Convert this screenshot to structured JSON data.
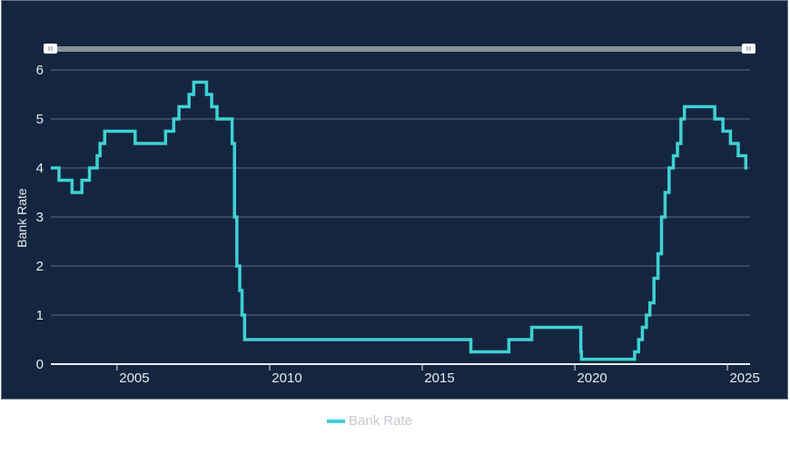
{
  "chart_data": {
    "type": "line",
    "step": true,
    "ylabel": "Bank Rate",
    "xlabel": "",
    "ylim": [
      0,
      6
    ],
    "yticks": [
      "0",
      "1",
      "2",
      "3",
      "4",
      "5",
      "6"
    ],
    "xlim": [
      2002.83,
      2025.65
    ],
    "xticks": [
      "2005",
      "2010",
      "2015",
      "2020",
      "2025"
    ],
    "grid": true,
    "legend_position": "bottom",
    "color": "#3fd0d4",
    "series": [
      {
        "name": "Bank Rate",
        "points": [
          [
            "2002-10-31",
            4.0
          ],
          [
            "2003-02-06",
            3.75
          ],
          [
            "2003-07-10",
            3.5
          ],
          [
            "2003-11-06",
            3.75
          ],
          [
            "2004-02-05",
            4.0
          ],
          [
            "2004-05-06",
            4.25
          ],
          [
            "2004-06-10",
            4.5
          ],
          [
            "2004-08-05",
            4.75
          ],
          [
            "2005-08-04",
            4.5
          ],
          [
            "2006-08-03",
            4.75
          ],
          [
            "2006-11-09",
            5.0
          ],
          [
            "2007-01-11",
            5.25
          ],
          [
            "2007-05-10",
            5.5
          ],
          [
            "2007-07-05",
            5.75
          ],
          [
            "2007-12-06",
            5.5
          ],
          [
            "2008-02-07",
            5.25
          ],
          [
            "2008-04-10",
            5.0
          ],
          [
            "2008-10-08",
            4.5
          ],
          [
            "2008-11-06",
            3.0
          ],
          [
            "2008-12-04",
            2.0
          ],
          [
            "2009-01-08",
            1.5
          ],
          [
            "2009-02-05",
            1.0
          ],
          [
            "2009-03-05",
            0.5
          ],
          [
            "2016-08-04",
            0.25
          ],
          [
            "2017-11-02",
            0.5
          ],
          [
            "2018-08-02",
            0.75
          ],
          [
            "2020-03-11",
            0.25
          ],
          [
            "2020-03-19",
            0.1
          ],
          [
            "2021-12-16",
            0.25
          ],
          [
            "2022-02-03",
            0.5
          ],
          [
            "2022-03-17",
            0.75
          ],
          [
            "2022-05-05",
            1.0
          ],
          [
            "2022-06-16",
            1.25
          ],
          [
            "2022-08-04",
            1.75
          ],
          [
            "2022-09-22",
            2.25
          ],
          [
            "2022-11-03",
            3.0
          ],
          [
            "2022-12-15",
            3.5
          ],
          [
            "2023-02-02",
            4.0
          ],
          [
            "2023-03-23",
            4.25
          ],
          [
            "2023-05-11",
            4.5
          ],
          [
            "2023-06-22",
            5.0
          ],
          [
            "2023-08-03",
            5.25
          ],
          [
            "2024-08-01",
            5.0
          ],
          [
            "2024-11-07",
            4.75
          ],
          [
            "2025-02-06",
            4.5
          ],
          [
            "2025-05-08",
            4.25
          ],
          [
            "2025-08-07",
            4.0
          ],
          [
            "2025-08-25",
            4.0
          ]
        ]
      }
    ]
  },
  "slider": {
    "range": [
      0,
      1
    ]
  },
  "legend": {
    "label": "Bank Rate"
  }
}
